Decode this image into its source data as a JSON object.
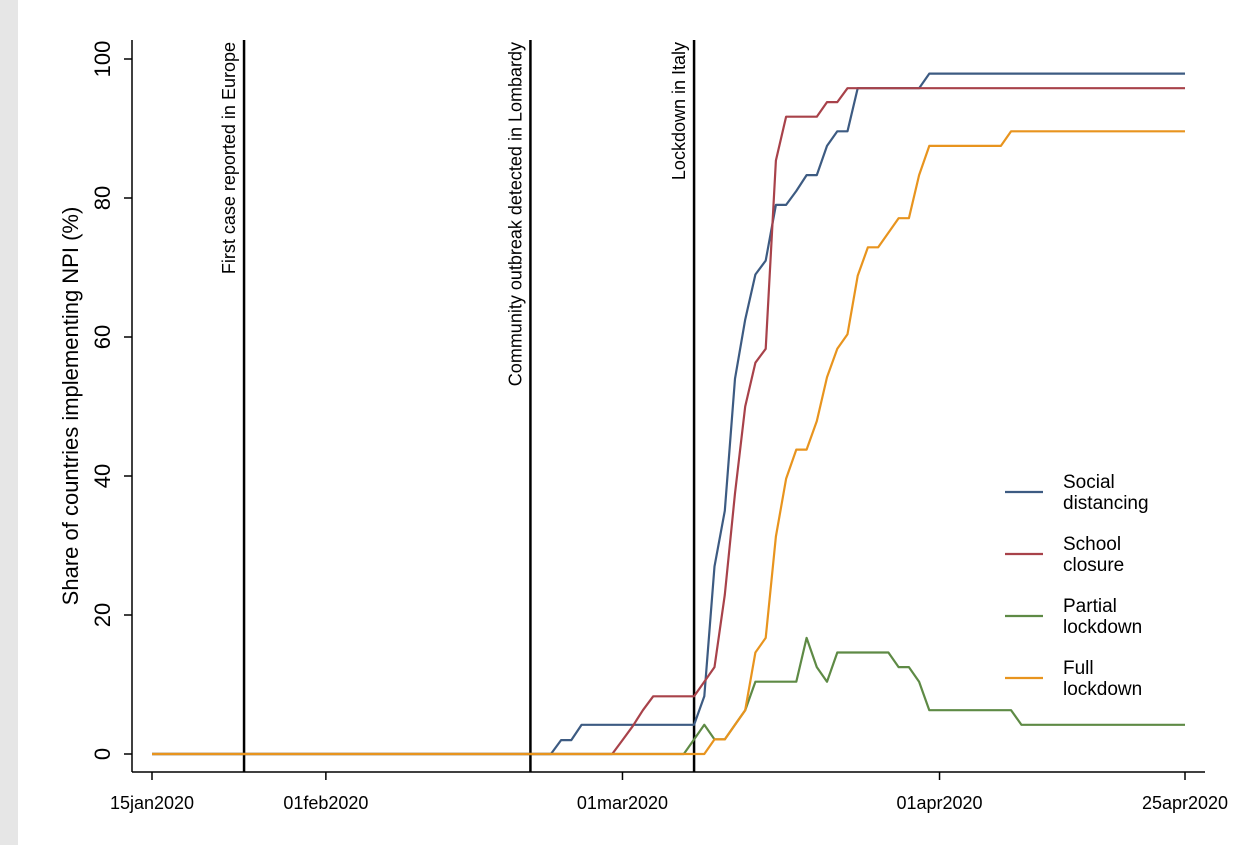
{
  "chart_data": {
    "type": "line",
    "title": "",
    "xlabel": "",
    "ylabel": "Share of countries implementing NPI (%)",
    "ylim": [
      0,
      100
    ],
    "yticks": [
      0,
      20,
      40,
      60,
      80,
      100
    ],
    "xlim": [
      "2020-01-15",
      "2020-04-25"
    ],
    "xticks": [
      {
        "date": "2020-01-15",
        "label": "15jan2020"
      },
      {
        "date": "2020-02-01",
        "label": "01feb2020"
      },
      {
        "date": "2020-03-01",
        "label": "01mar2020"
      },
      {
        "date": "2020-04-01",
        "label": "01apr2020"
      },
      {
        "date": "2020-04-25",
        "label": "25apr2020"
      }
    ],
    "grid": false,
    "legend_position": "right",
    "events": [
      {
        "date": "2020-01-24",
        "label": "First case reported in Europe"
      },
      {
        "date": "2020-02-21",
        "label": "Community outbreak detected in Lombardy"
      },
      {
        "date": "2020-03-08",
        "label": "Lockdown in Italy"
      }
    ],
    "series": [
      {
        "name": "Social\ndistancing",
        "color": "#3d5b82",
        "points": [
          [
            "2020-01-15",
            0
          ],
          [
            "2020-02-23",
            0
          ],
          [
            "2020-02-24",
            2
          ],
          [
            "2020-02-25",
            2
          ],
          [
            "2020-02-26",
            4.2
          ],
          [
            "2020-03-08",
            4.2
          ],
          [
            "2020-03-09",
            8.3
          ],
          [
            "2020-03-10",
            27
          ],
          [
            "2020-03-11",
            35
          ],
          [
            "2020-03-12",
            54
          ],
          [
            "2020-03-13",
            62.5
          ],
          [
            "2020-03-14",
            69
          ],
          [
            "2020-03-15",
            71
          ],
          [
            "2020-03-16",
            79
          ],
          [
            "2020-03-17",
            79
          ],
          [
            "2020-03-18",
            81
          ],
          [
            "2020-03-19",
            83.3
          ],
          [
            "2020-03-20",
            83.3
          ],
          [
            "2020-03-21",
            87.5
          ],
          [
            "2020-03-22",
            89.6
          ],
          [
            "2020-03-23",
            89.6
          ],
          [
            "2020-03-24",
            95.8
          ],
          [
            "2020-03-30",
            95.8
          ],
          [
            "2020-03-31",
            97.9
          ],
          [
            "2020-04-25",
            97.9
          ]
        ]
      },
      {
        "name": "School\nclosure",
        "color": "#a8424a",
        "points": [
          [
            "2020-01-15",
            0
          ],
          [
            "2020-02-29",
            0
          ],
          [
            "2020-03-01",
            2
          ],
          [
            "2020-03-02",
            4
          ],
          [
            "2020-03-03",
            6.3
          ],
          [
            "2020-03-04",
            8.3
          ],
          [
            "2020-03-08",
            8.3
          ],
          [
            "2020-03-09",
            10.4
          ],
          [
            "2020-03-10",
            12.5
          ],
          [
            "2020-03-11",
            22.9
          ],
          [
            "2020-03-12",
            37.5
          ],
          [
            "2020-03-13",
            50
          ],
          [
            "2020-03-14",
            56.3
          ],
          [
            "2020-03-15",
            58.3
          ],
          [
            "2020-03-16",
            85.4
          ],
          [
            "2020-03-17",
            91.7
          ],
          [
            "2020-03-20",
            91.7
          ],
          [
            "2020-03-21",
            93.8
          ],
          [
            "2020-03-22",
            93.8
          ],
          [
            "2020-03-23",
            95.8
          ],
          [
            "2020-04-25",
            95.8
          ]
        ]
      },
      {
        "name": "Partial\nlockdown",
        "color": "#5e8a45",
        "points": [
          [
            "2020-01-15",
            0
          ],
          [
            "2020-03-07",
            0
          ],
          [
            "2020-03-08",
            2.1
          ],
          [
            "2020-03-09",
            4.2
          ],
          [
            "2020-03-10",
            2.1
          ],
          [
            "2020-03-11",
            2.1
          ],
          [
            "2020-03-12",
            4.2
          ],
          [
            "2020-03-13",
            6.3
          ],
          [
            "2020-03-14",
            10.4
          ],
          [
            "2020-03-18",
            10.4
          ],
          [
            "2020-03-19",
            16.7
          ],
          [
            "2020-03-20",
            12.5
          ],
          [
            "2020-03-21",
            10.4
          ],
          [
            "2020-03-22",
            14.6
          ],
          [
            "2020-03-27",
            14.6
          ],
          [
            "2020-03-28",
            12.5
          ],
          [
            "2020-03-29",
            12.5
          ],
          [
            "2020-03-30",
            10.4
          ],
          [
            "2020-03-31",
            6.3
          ],
          [
            "2020-04-08",
            6.3
          ],
          [
            "2020-04-09",
            4.2
          ],
          [
            "2020-04-25",
            4.2
          ]
        ]
      },
      {
        "name": "Full\nlockdown",
        "color": "#e8941e",
        "points": [
          [
            "2020-01-15",
            0
          ],
          [
            "2020-03-09",
            0
          ],
          [
            "2020-03-10",
            2.1
          ],
          [
            "2020-03-11",
            2.1
          ],
          [
            "2020-03-12",
            4.2
          ],
          [
            "2020-03-13",
            6.3
          ],
          [
            "2020-03-14",
            14.6
          ],
          [
            "2020-03-15",
            16.7
          ],
          [
            "2020-03-16",
            31.3
          ],
          [
            "2020-03-17",
            39.6
          ],
          [
            "2020-03-18",
            43.8
          ],
          [
            "2020-03-19",
            43.8
          ],
          [
            "2020-03-20",
            47.9
          ],
          [
            "2020-03-21",
            54.2
          ],
          [
            "2020-03-22",
            58.3
          ],
          [
            "2020-03-23",
            60.4
          ],
          [
            "2020-03-24",
            68.8
          ],
          [
            "2020-03-25",
            72.9
          ],
          [
            "2020-03-26",
            72.9
          ],
          [
            "2020-03-27",
            75
          ],
          [
            "2020-03-28",
            77.1
          ],
          [
            "2020-03-29",
            77.1
          ],
          [
            "2020-03-30",
            83.3
          ],
          [
            "2020-03-31",
            87.5
          ],
          [
            "2020-04-07",
            87.5
          ],
          [
            "2020-04-08",
            89.6
          ],
          [
            "2020-04-25",
            89.6
          ]
        ]
      }
    ]
  }
}
